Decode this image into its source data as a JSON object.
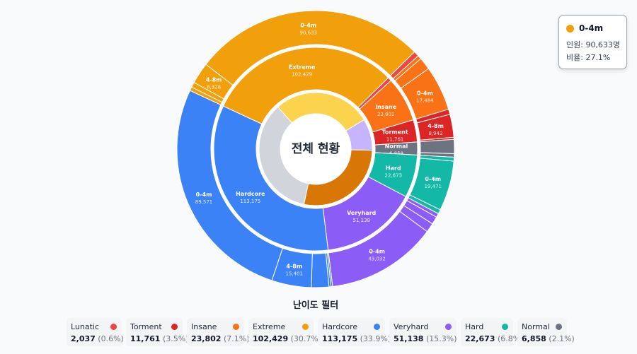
{
  "chart_data": {
    "type": "sunburst",
    "center_label": "전체 현황",
    "inner_ring": [
      {
        "color": "#fcd34d",
        "share": 0.28
      },
      {
        "color": "#c4b5fd",
        "share": 0.09
      },
      {
        "color": "#d97706",
        "share": 0.28
      },
      {
        "color": "#d1d5db",
        "share": 0.35
      }
    ],
    "categories": [
      {
        "name": "Extreme",
        "value": 102429,
        "color": "#f29f0c",
        "children": [
          {
            "label": "",
            "value": 1500
          },
          {
            "label": "",
            "value": 1968
          },
          {
            "label": "4-8m",
            "value": 8328
          },
          {
            "label": "0-4m",
            "value": 90633
          }
        ]
      },
      {
        "name": "Lunatic",
        "value": 2037,
        "color": "#ef4444",
        "children": [
          {
            "label": "",
            "value": 2037
          }
        ]
      },
      {
        "name": "Insane",
        "value": 23802,
        "color": "#f97316",
        "children": [
          {
            "label": "",
            "value": 1500
          },
          {
            "label": "",
            "value": 4818
          },
          {
            "label": "0-4m",
            "value": 17484
          }
        ]
      },
      {
        "name": "Torment",
        "value": 11761,
        "color": "#dc2626",
        "children": [
          {
            "label": "",
            "value": 2000
          },
          {
            "label": "4-8m",
            "value": 8942
          },
          {
            "label": "",
            "value": 819
          }
        ]
      },
      {
        "name": "Normal",
        "value": 6858,
        "color": "#6b7280",
        "children": [
          {
            "label": "",
            "value": 5500
          },
          {
            "label": "",
            "value": 1358
          }
        ]
      },
      {
        "name": "Hard",
        "value": 22673,
        "color": "#14b8a6",
        "children": [
          {
            "label": "",
            "value": 1500
          },
          {
            "label": "0-4m",
            "value": 19471
          },
          {
            "label": "",
            "value": 1702
          }
        ]
      },
      {
        "name": "Veryhard",
        "value": 51138,
        "color": "#8b5cf6",
        "children": [
          {
            "label": "",
            "value": 1500
          },
          {
            "label": "",
            "value": 3000
          },
          {
            "label": "",
            "value": 3606
          },
          {
            "label": "0-4m",
            "value": 43032
          }
        ]
      },
      {
        "name": "Hardcore",
        "value": 113175,
        "color": "#3b82f6",
        "children": [
          {
            "label": "",
            "value": 600
          },
          {
            "label": "",
            "value": 800
          },
          {
            "label": "",
            "value": 6803
          },
          {
            "label": "4-8m",
            "value": 15401
          },
          {
            "label": "0-4m",
            "value": 89571
          }
        ]
      }
    ]
  },
  "tooltip": {
    "title": "0-4m",
    "color": "#f29f0c",
    "line1": "인원: 90,633명",
    "line2": "비율: 27.1%"
  },
  "filter": {
    "title": "난이도 필터",
    "items": [
      {
        "name": "Lunatic",
        "count": "2,037",
        "pct": "(0.6%)",
        "color": "#ef4444"
      },
      {
        "name": "Torment",
        "count": "11,761",
        "pct": "(3.5%)",
        "color": "#dc2626"
      },
      {
        "name": "Insane",
        "count": "23,802",
        "pct": "(7.1%)",
        "color": "#f97316"
      },
      {
        "name": "Extreme",
        "count": "102,429",
        "pct": "(30.7%)",
        "color": "#f29f0c"
      },
      {
        "name": "Hardcore",
        "count": "113,175",
        "pct": "(33.9%)",
        "color": "#3b82f6"
      },
      {
        "name": "Veryhard",
        "count": "51,138",
        "pct": "(15.3%)",
        "color": "#8b5cf6"
      },
      {
        "name": "Hard",
        "count": "22,673",
        "pct": "(6.8%)",
        "color": "#14b8a6"
      },
      {
        "name": "Normal",
        "count": "6,858",
        "pct": "(2.1%)",
        "color": "#6b7280"
      }
    ]
  }
}
